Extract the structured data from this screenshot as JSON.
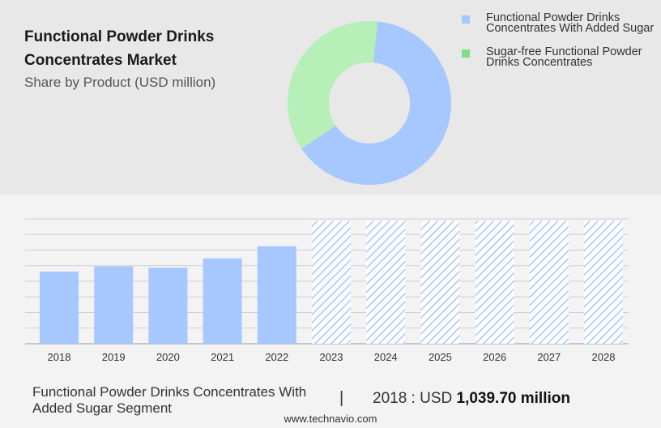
{
  "header": {
    "title": "Functional Powder Drinks Concentrates Market",
    "subtitle": "Share by Product (USD million)"
  },
  "colors": {
    "series_added_sugar": "#a7c7ff",
    "series_sugar_free": "#b6efb8",
    "legend_sugar_free_swatch": "#7ddf86",
    "bar_forecast_hatch": "#a7c7ff",
    "top_panel_bg": "#e8e8e8",
    "bottom_panel_bg": "#f3f3f3"
  },
  "chart_data": [
    {
      "type": "pie",
      "subtype": "donut",
      "series": [
        {
          "name": "Functional Powder Drinks Concentrates With Added Sugar",
          "value": 0.64
        },
        {
          "name": "Sugar-free Functional Powder Drinks Concentrates",
          "value": 0.36
        }
      ],
      "legend": "top-right"
    },
    {
      "type": "bar",
      "categories": [
        "2018",
        "2019",
        "2020",
        "2021",
        "2022",
        "2023",
        "2024",
        "2025",
        "2026",
        "2027",
        "2028"
      ],
      "values": [
        1039.7,
        1115,
        1095,
        1230,
        1405,
        1770,
        1770,
        1770,
        1770,
        1770,
        1770
      ],
      "forecast_from": "2023",
      "forecast_style": "hatched",
      "ylim": [
        0,
        1800
      ],
      "grid": true
    }
  ],
  "footer": {
    "segment": "Functional Powder Drinks Concentrates With Added Sugar Segment",
    "separator": "|",
    "value_prefix": "2018 : USD ",
    "value_bold": "1,039.70 million",
    "website": "www.technavio.com"
  }
}
